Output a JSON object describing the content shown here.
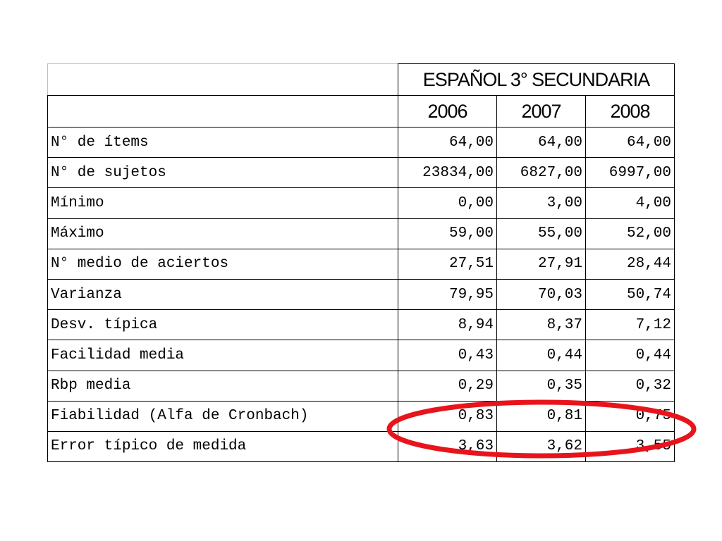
{
  "table": {
    "title": "ESPAÑOL 3° SECUNDARIA",
    "years": [
      "2006",
      "2007",
      "2008"
    ],
    "rows": [
      {
        "label": "N° de ítems",
        "values": [
          "64,00",
          "64,00",
          "64,00"
        ]
      },
      {
        "label": "N° de sujetos",
        "values": [
          "23834,00",
          "6827,00",
          "6997,00"
        ]
      },
      {
        "label": "Mínimo",
        "values": [
          "0,00",
          "3,00",
          "4,00"
        ]
      },
      {
        "label": "Máximo",
        "values": [
          "59,00",
          "55,00",
          "52,00"
        ]
      },
      {
        "label": "N° medio de aciertos",
        "values": [
          "27,51",
          "27,91",
          "28,44"
        ]
      },
      {
        "label": "Varianza",
        "values": [
          "79,95",
          "70,03",
          "50,74"
        ]
      },
      {
        "label": "Desv. típica",
        "values": [
          "8,94",
          "8,37",
          "7,12"
        ]
      },
      {
        "label": "Facilidad media",
        "values": [
          "0,43",
          "0,44",
          "0,44"
        ]
      },
      {
        "label": "Rbp media",
        "values": [
          "0,29",
          "0,35",
          "0,32"
        ]
      },
      {
        "label": "Fiabilidad (Alfa de Cronbach)",
        "values": [
          "0,83",
          "0,81",
          "0,75"
        ]
      },
      {
        "label": "Error típico de medida",
        "values": [
          "3,63",
          "3,62",
          "3,55"
        ]
      }
    ]
  },
  "highlight": {
    "row_label": "Fiabilidad (Alfa de Cronbach)",
    "color": "#e8141c"
  }
}
